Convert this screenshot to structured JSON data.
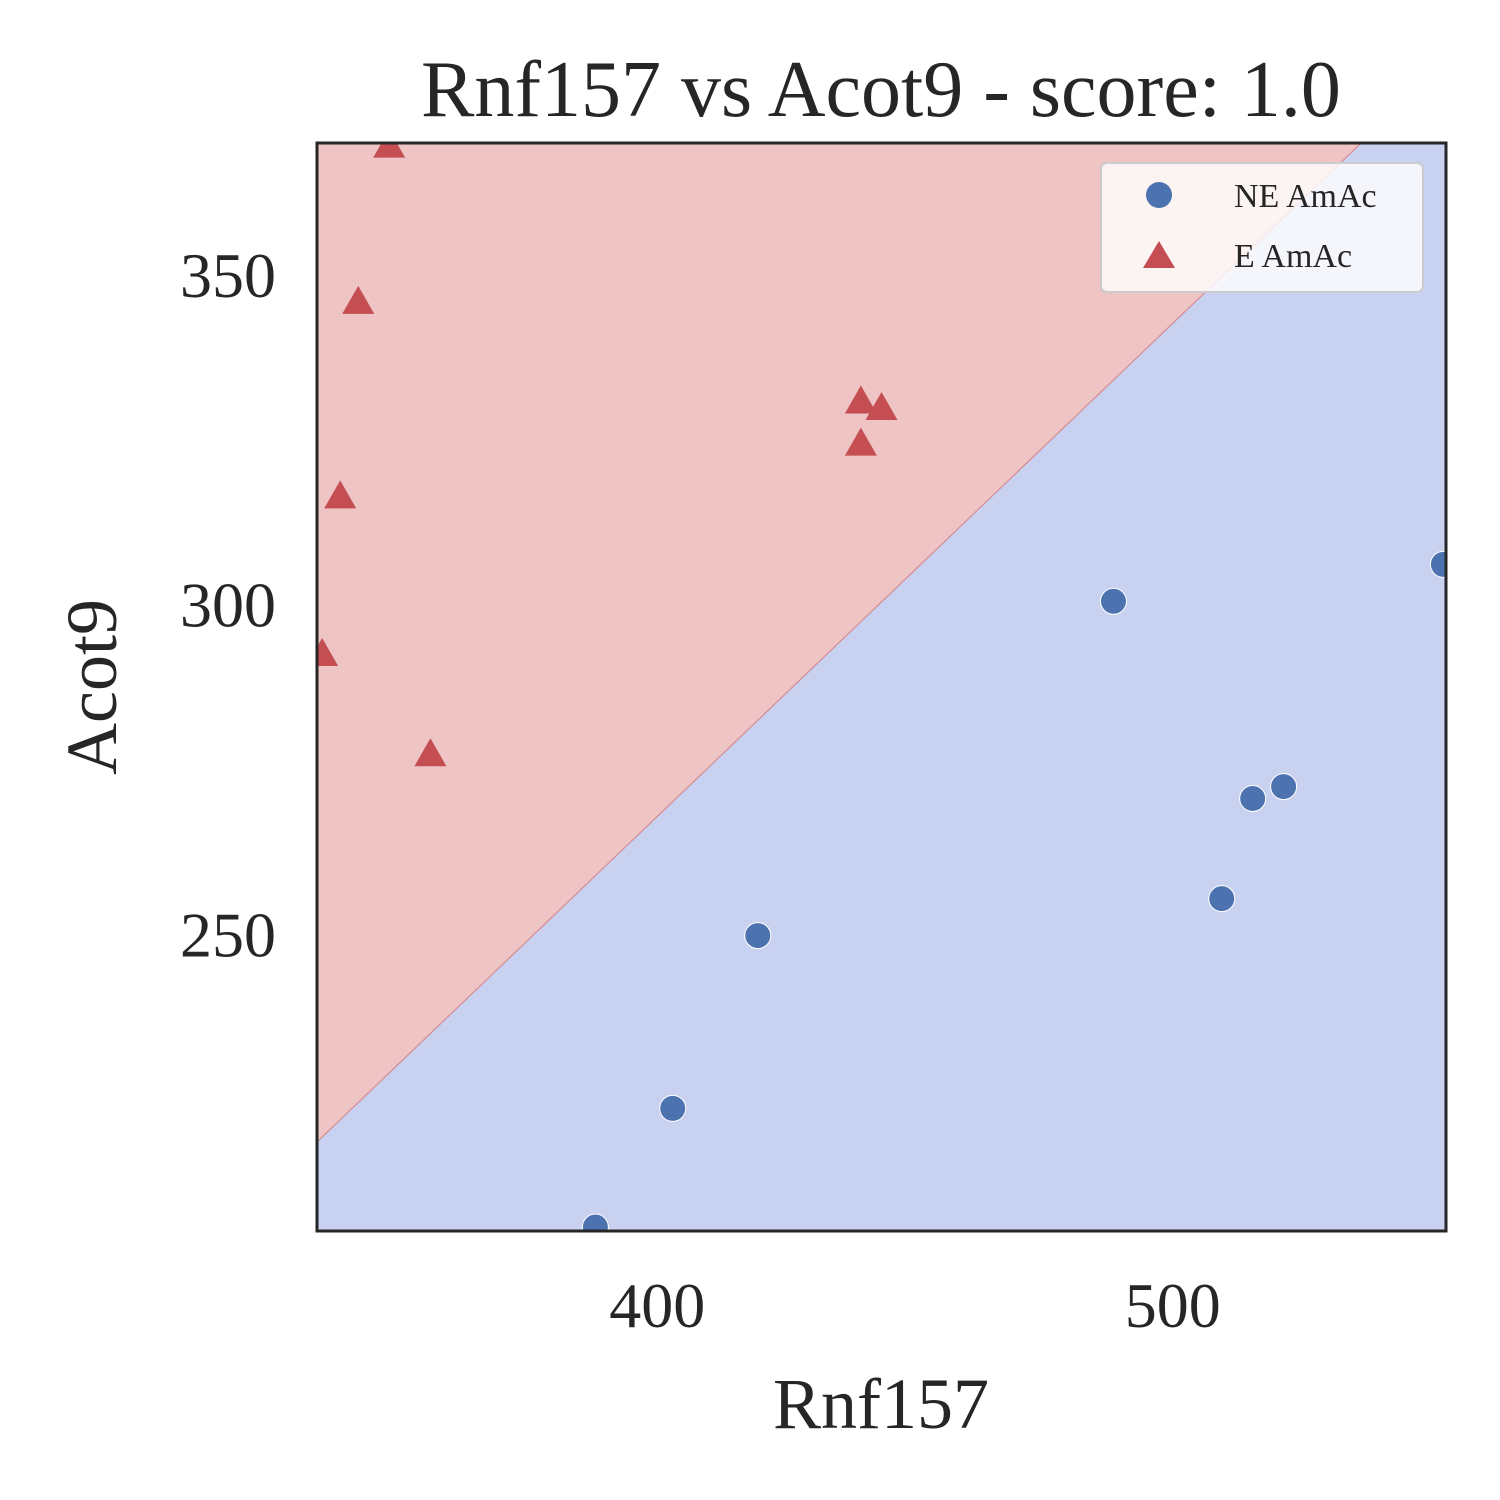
{
  "chart_data": {
    "type": "scatter",
    "title": "Rnf157 vs Acot9 - score: 1.0",
    "xlabel": "Rnf157",
    "ylabel": "Acot9",
    "xlim": [
      334,
      553
    ],
    "ylim": [
      205,
      370
    ],
    "xticks": [
      400,
      500
    ],
    "yticks": [
      250,
      300,
      350
    ],
    "grid": false,
    "legend_position": "top-right",
    "background_regions": [
      {
        "class": "E AmAc",
        "color": "#eec4c4",
        "side": "above boundary"
      },
      {
        "class": "NE AmAc",
        "color": "#c9d1f1",
        "side": "below boundary"
      }
    ],
    "decision_boundary": [
      [
        334,
        218.5
      ],
      [
        553,
        382.3
      ]
    ],
    "series": [
      {
        "name": "NE AmAc",
        "marker": "circle",
        "color": "#4c72b0",
        "points": [
          [
            388,
            205.6
          ],
          [
            403,
            223.6
          ],
          [
            419.5,
            249.8
          ],
          [
            488.5,
            300.5
          ],
          [
            509.5,
            255.4
          ],
          [
            515.5,
            270.6
          ],
          [
            521.5,
            272.4
          ],
          [
            552.5,
            306.1
          ]
        ]
      },
      {
        "name": "E AmAc",
        "marker": "triangle",
        "color": "#c44e52",
        "points": [
          [
            348,
            369.3
          ],
          [
            342,
            345.6
          ],
          [
            338.5,
            316.1
          ],
          [
            335,
            292.2
          ],
          [
            356,
            277.0
          ],
          [
            439.5,
            330.5
          ],
          [
            443.5,
            329.5
          ],
          [
            439.5,
            324.1
          ]
        ]
      }
    ]
  }
}
